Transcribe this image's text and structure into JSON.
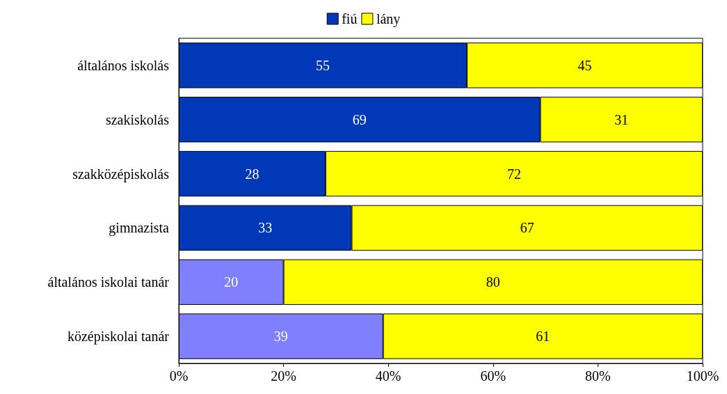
{
  "chart_data": {
    "type": "bar",
    "orientation": "horizontal",
    "stacked": true,
    "categories": [
      "általános iskolás",
      "szakiskolás",
      "szakközépiskolás",
      "gimnazista",
      "általános iskolai tanár",
      "középiskolai tanár"
    ],
    "series": [
      {
        "name": "fiú",
        "color": "#0038b8",
        "colors": [
          "#0038b8",
          "#0038b8",
          "#0038b8",
          "#0038b8",
          "#8080ff",
          "#8080ff"
        ],
        "values": [
          55,
          69,
          28,
          33,
          20,
          39
        ]
      },
      {
        "name": "lány",
        "color": "#ffff00",
        "values": [
          45,
          31,
          72,
          67,
          80,
          61
        ]
      }
    ],
    "xlim": [
      0,
      100
    ],
    "xticks": [
      {
        "value": 0,
        "label": "0%"
      },
      {
        "value": 20,
        "label": "20%"
      },
      {
        "value": 40,
        "label": "40%"
      },
      {
        "value": 60,
        "label": "60%"
      },
      {
        "value": 80,
        "label": "80%"
      },
      {
        "value": 100,
        "label": "100%"
      }
    ],
    "data_labels": true,
    "grid": false,
    "legend": "top"
  }
}
